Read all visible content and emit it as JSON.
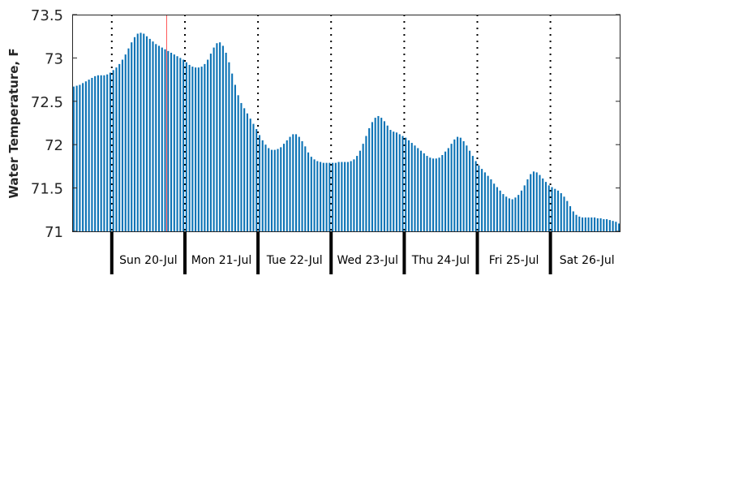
{
  "chart_data": {
    "type": "bar",
    "title": "",
    "xlabel": "",
    "ylabel": "Water Temperature, F",
    "ylim": [
      71,
      73.5
    ],
    "yticks": [
      "71",
      "71.5",
      "72",
      "72.5",
      "73",
      "73.5"
    ],
    "day_labels": [
      "Sun 20-Jul",
      "Mon 21-Jul",
      "Tue 22-Jul",
      "Wed 23-Jul",
      "Thu 24-Jul",
      "Fri 25-Jul",
      "Sat 26-Jul"
    ],
    "bar_color": "#0b72b5",
    "marker_color": "#ff5a5a",
    "grid": false,
    "x_start": "2014-07-19 11:00",
    "x_step_hours": 1,
    "values": [
      72.67,
      72.68,
      72.69,
      72.71,
      72.73,
      72.75,
      72.77,
      72.79,
      72.8,
      72.8,
      72.8,
      72.81,
      72.83,
      72.86,
      72.89,
      72.93,
      72.98,
      73.04,
      73.11,
      73.18,
      73.24,
      73.28,
      73.29,
      73.28,
      73.25,
      73.22,
      73.19,
      73.16,
      73.14,
      73.12,
      73.1,
      73.08,
      73.06,
      73.04,
      73.02,
      73.0,
      72.98,
      72.95,
      72.92,
      72.9,
      72.89,
      72.89,
      72.9,
      72.93,
      72.98,
      73.05,
      73.12,
      73.17,
      73.18,
      73.14,
      73.06,
      72.95,
      72.82,
      72.69,
      72.57,
      72.48,
      72.42,
      72.36,
      72.3,
      72.24,
      72.18,
      72.11,
      72.05,
      72.0,
      71.96,
      71.94,
      71.94,
      71.95,
      71.97,
      72.01,
      72.05,
      72.09,
      72.12,
      72.12,
      72.09,
      72.04,
      71.98,
      71.91,
      71.86,
      71.83,
      71.81,
      71.8,
      71.79,
      71.79,
      71.79,
      71.79,
      71.79,
      71.8,
      71.8,
      71.8,
      71.8,
      71.81,
      71.83,
      71.87,
      71.93,
      72.01,
      72.1,
      72.19,
      72.26,
      72.31,
      72.33,
      72.31,
      72.27,
      72.22,
      72.17,
      72.15,
      72.14,
      72.12,
      72.1,
      72.08,
      72.05,
      72.02,
      71.99,
      71.96,
      71.93,
      71.9,
      71.87,
      71.85,
      71.84,
      71.84,
      71.85,
      71.88,
      71.92,
      71.96,
      72.01,
      72.06,
      72.09,
      72.08,
      72.04,
      71.99,
      71.93,
      71.87,
      71.81,
      71.76,
      71.72,
      71.68,
      71.64,
      71.6,
      71.55,
      71.51,
      71.47,
      71.43,
      71.4,
      71.38,
      71.37,
      71.39,
      71.42,
      71.47,
      71.53,
      71.6,
      71.66,
      71.69,
      71.68,
      71.65,
      71.61,
      71.57,
      71.53,
      71.51,
      71.49,
      71.47,
      71.44,
      71.4,
      71.35,
      71.29,
      71.23,
      71.19,
      71.17,
      71.16,
      71.16,
      71.16,
      71.16,
      71.16,
      71.15,
      71.15,
      71.14,
      71.14,
      71.13,
      71.12,
      71.11,
      71.09
    ]
  }
}
